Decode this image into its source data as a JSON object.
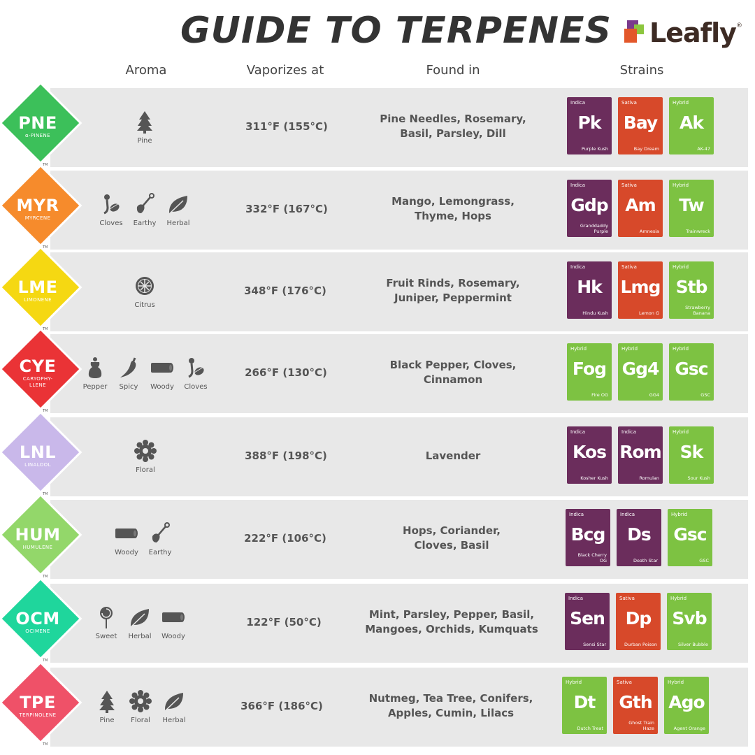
{
  "header": {
    "title": "GUIDE TO TERPENES",
    "brand": "Leafly",
    "brand_tm": "®"
  },
  "columns": {
    "aroma": "Aroma",
    "vaporizes": "Vaporizes at",
    "found": "Found in",
    "strains": "Strains"
  },
  "trademark": "TM",
  "colors": {
    "indica": "#6b2d5c",
    "sativa": "#d7492a",
    "hybrid": "#7dc242",
    "row_bg": "#e8e8e8"
  },
  "terpenes": [
    {
      "abbr": "PNE",
      "name": "α-PINENE",
      "color": "#3cc05a",
      "aromas": [
        {
          "label": "Pine",
          "icon": "pine-tree-icon"
        }
      ],
      "vaporizes": "311°F (155°C)",
      "found": [
        "Pine Needles, Rosemary,",
        "Basil, Parsley, Dill"
      ],
      "strains": [
        {
          "type": "Indica",
          "abbr": "Pk",
          "name": [
            "Purple Kush"
          ]
        },
        {
          "type": "Sativa",
          "abbr": "Bay",
          "name": [
            "Bay Dream"
          ]
        },
        {
          "type": "Hybrid",
          "abbr": "Ak",
          "name": [
            "AK-47"
          ]
        }
      ]
    },
    {
      "abbr": "MYR",
      "name": "MYRCENE",
      "color": "#f68b2c",
      "aromas": [
        {
          "label": "Cloves",
          "icon": "clove-icon"
        },
        {
          "label": "Earthy",
          "icon": "shovel-icon"
        },
        {
          "label": "Herbal",
          "icon": "leaf-icon"
        }
      ],
      "vaporizes": "332°F (167°C)",
      "found": [
        "Mango, Lemongrass,",
        "Thyme, Hops"
      ],
      "strains": [
        {
          "type": "Indica",
          "abbr": "Gdp",
          "name": [
            "Granddaddy",
            "Purple"
          ]
        },
        {
          "type": "Sativa",
          "abbr": "Am",
          "name": [
            "Amnesia"
          ]
        },
        {
          "type": "Hybrid",
          "abbr": "Tw",
          "name": [
            "Trainwreck"
          ]
        }
      ]
    },
    {
      "abbr": "LME",
      "name": "LIMONENE",
      "color": "#f5d812",
      "aromas": [
        {
          "label": "Citrus",
          "icon": "citrus-icon"
        }
      ],
      "vaporizes": "348°F (176°C)",
      "found": [
        "Fruit Rinds, Rosemary,",
        "Juniper, Peppermint"
      ],
      "strains": [
        {
          "type": "Indica",
          "abbr": "Hk",
          "name": [
            "Hindu Kush"
          ]
        },
        {
          "type": "Sativa",
          "abbr": "Lmg",
          "name": [
            "Lemon G"
          ]
        },
        {
          "type": "Hybrid",
          "abbr": "Stb",
          "name": [
            "Strawberry",
            "Banana"
          ]
        }
      ]
    },
    {
      "abbr": "CYE",
      "name": "CARYOPHY-LLENE",
      "color": "#ea3336",
      "aromas": [
        {
          "label": "Pepper",
          "icon": "pepper-grinder-icon"
        },
        {
          "label": "Spicy",
          "icon": "chili-icon"
        },
        {
          "label": "Woody",
          "icon": "log-icon"
        },
        {
          "label": "Cloves",
          "icon": "clove-icon"
        }
      ],
      "vaporizes": "266°F (130°C)",
      "found": [
        "Black Pepper, Cloves,",
        "Cinnamon"
      ],
      "strains": [
        {
          "type": "Hybrid",
          "abbr": "Fog",
          "name": [
            "Fire OG"
          ]
        },
        {
          "type": "Hybrid",
          "abbr": "Gg4",
          "name": [
            "GG4"
          ]
        },
        {
          "type": "Hybrid",
          "abbr": "Gsc",
          "name": [
            "GSC"
          ]
        }
      ]
    },
    {
      "abbr": "LNL",
      "name": "LINALOOL",
      "color": "#c9b8ea",
      "aromas": [
        {
          "label": "Floral",
          "icon": "flower-icon"
        }
      ],
      "vaporizes": "388°F (198°C)",
      "found": [
        "Lavender"
      ],
      "strains": [
        {
          "type": "Indica",
          "abbr": "Kos",
          "name": [
            "Kosher Kush"
          ]
        },
        {
          "type": "Indica",
          "abbr": "Rom",
          "name": [
            "Romulan"
          ]
        },
        {
          "type": "Hybrid",
          "abbr": "Sk",
          "name": [
            "Sour Kush"
          ]
        }
      ]
    },
    {
      "abbr": "HUM",
      "name": "HUMULENE",
      "color": "#93d76a",
      "aromas": [
        {
          "label": "Woody",
          "icon": "log-icon"
        },
        {
          "label": "Earthy",
          "icon": "shovel-icon"
        }
      ],
      "vaporizes": "222°F (106°C)",
      "found": [
        "Hops, Coriander,",
        "Cloves, Basil"
      ],
      "strains": [
        {
          "type": "Indica",
          "abbr": "Bcg",
          "name": [
            "Black Cherry",
            "OG"
          ]
        },
        {
          "type": "Indica",
          "abbr": "Ds",
          "name": [
            "Death Star"
          ]
        },
        {
          "type": "Hybrid",
          "abbr": "Gsc",
          "name": [
            "GSC"
          ]
        }
      ]
    },
    {
      "abbr": "OCM",
      "name": "OCIMENE",
      "color": "#1fd69c",
      "aromas": [
        {
          "label": "Sweet",
          "icon": "lollipop-icon"
        },
        {
          "label": "Herbal",
          "icon": "leaf-icon"
        },
        {
          "label": "Woody",
          "icon": "log-icon"
        }
      ],
      "vaporizes": "122°F (50°C)",
      "found": [
        "Mint, Parsley, Pepper, Basil,",
        "Mangoes, Orchids, Kumquats"
      ],
      "strains": [
        {
          "type": "Indica",
          "abbr": "Sen",
          "name": [
            "Sensi Star"
          ]
        },
        {
          "type": "Sativa",
          "abbr": "Dp",
          "name": [
            "Durban Poison"
          ]
        },
        {
          "type": "Hybrid",
          "abbr": "Svb",
          "name": [
            "Silver Bubble"
          ]
        }
      ]
    },
    {
      "abbr": "TPE",
      "name": "TERPINOLENE",
      "color": "#ef5168",
      "aromas": [
        {
          "label": "Pine",
          "icon": "pine-tree-icon"
        },
        {
          "label": "Floral",
          "icon": "flower-icon"
        },
        {
          "label": "Herbal",
          "icon": "leaf-icon"
        }
      ],
      "vaporizes": "366°F (186°C)",
      "found": [
        "Nutmeg, Tea Tree, Conifers,",
        "Apples, Cumin, Lilacs"
      ],
      "strains": [
        {
          "type": "Hybrid",
          "abbr": "Dt",
          "name": [
            "Dutch Treat"
          ]
        },
        {
          "type": "Sativa",
          "abbr": "Gth",
          "name": [
            "Ghost Train",
            "Haze"
          ]
        },
        {
          "type": "Hybrid",
          "abbr": "Ago",
          "name": [
            "Agent Orange"
          ]
        }
      ]
    }
  ]
}
